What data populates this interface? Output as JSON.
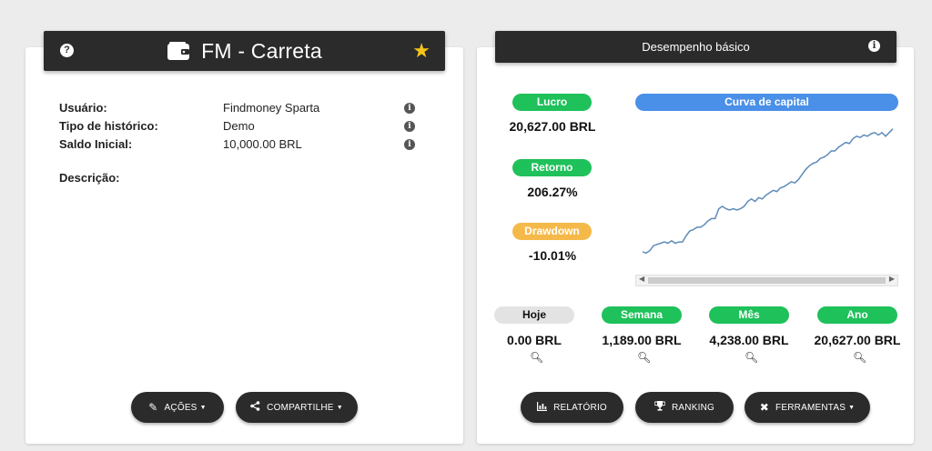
{
  "left_card": {
    "title": "FM - Carreta",
    "info": [
      {
        "label": "Usuário:",
        "value": "Findmoney Sparta"
      },
      {
        "label": "Tipo de histórico:",
        "value": "Demo"
      },
      {
        "label": "Saldo Inicial:",
        "value": "10,000.00 BRL"
      }
    ],
    "description_label": "Descrição:",
    "actions_label": "AÇÕES",
    "share_label": "COMPARTILHE"
  },
  "right_card": {
    "title": "Desempenho básico",
    "metrics": {
      "profit": {
        "label": "Lucro",
        "value": "20,627.00 BRL"
      },
      "return": {
        "label": "Retorno",
        "value": "206.27%"
      },
      "drawdown": {
        "label": "Drawdown",
        "value": "-10.01%"
      }
    },
    "chart_label": "Curva de capital",
    "periods": [
      {
        "label": "Hoje",
        "value": "0.00 BRL"
      },
      {
        "label": "Semana",
        "value": "1,189.00 BRL"
      },
      {
        "label": "Mês",
        "value": "4,238.00 BRL"
      },
      {
        "label": "Ano",
        "value": "20,627.00 BRL"
      }
    ],
    "report_label": "RELATÓRIO",
    "ranking_label": "RANKING",
    "tools_label": "FERRAMENTAS"
  },
  "colors": {
    "green": "#1ec15a",
    "orange": "#f5b94a",
    "gray": "#e3e3e3",
    "blue": "#4a8fe8",
    "line": "#5d8cb8"
  },
  "chart_data": {
    "type": "line",
    "title": "",
    "xlabel": "",
    "ylabel": "",
    "x": [
      0,
      1,
      2,
      3,
      4,
      5,
      6,
      7,
      8,
      9,
      10,
      11,
      12,
      13,
      14,
      15,
      16,
      17,
      18,
      19,
      20,
      21,
      22,
      23,
      24,
      25,
      26,
      27,
      28,
      29,
      30,
      31,
      32,
      33,
      34,
      35,
      36,
      37,
      38,
      39,
      40,
      41,
      42,
      43,
      44,
      45,
      46,
      47,
      48,
      49,
      50,
      51,
      52,
      53,
      54,
      55,
      56,
      57,
      58,
      59,
      60,
      61,
      62,
      63,
      64,
      65,
      66,
      67,
      68,
      69
    ],
    "series": [
      {
        "values": [
          3,
          2,
          4,
          8,
          9,
          10,
          11,
          10,
          12,
          10,
          11,
          11,
          16,
          20,
          21,
          23,
          23,
          25,
          28,
          30,
          30,
          38,
          40,
          38,
          37,
          38,
          37,
          38,
          40,
          44,
          46,
          44,
          47,
          46,
          49,
          51,
          53,
          52,
          55,
          56,
          58,
          60,
          59,
          62,
          66,
          70,
          73,
          75,
          76,
          79,
          80,
          82,
          85,
          85,
          88,
          90,
          92,
          91,
          95,
          97,
          96,
          98,
          97,
          99,
          100,
          98,
          100,
          97,
          100,
          103
        ]
      }
    ],
    "ylim": [
      0,
      105
    ]
  }
}
